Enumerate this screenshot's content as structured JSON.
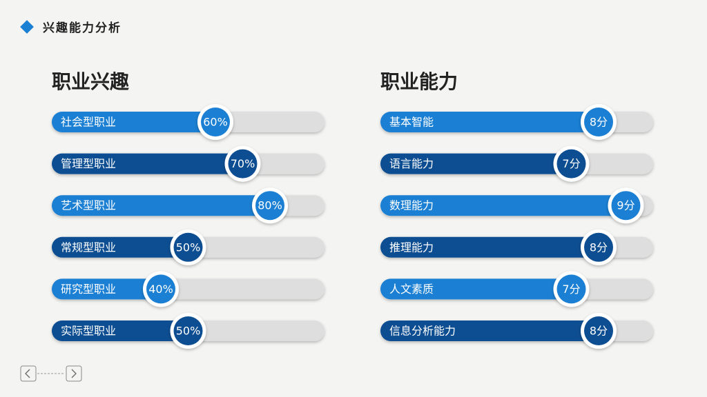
{
  "header": {
    "title": "兴趣能力分析"
  },
  "chart_data": [
    {
      "type": "bar",
      "title": "职业兴趣",
      "categories": [
        "社会型职业",
        "管理型职业",
        "艺术型职业",
        "常规型职业",
        "研究型职业",
        "实际型职业"
      ],
      "values": [
        60,
        70,
        80,
        50,
        40,
        50
      ],
      "value_labels": [
        "60%",
        "70%",
        "80%",
        "50%",
        "40%",
        "50%"
      ],
      "colors": [
        "#1b7fd3",
        "#0d4e92",
        "#1b7fd3",
        "#0d4e92",
        "#1b7fd3",
        "#0d4e92"
      ],
      "xlim": [
        0,
        100
      ]
    },
    {
      "type": "bar",
      "title": "职业能力",
      "categories": [
        "基本智能",
        "语言能力",
        "数理能力",
        "推理能力",
        "人文素质",
        "信息分析能力"
      ],
      "values": [
        8,
        7,
        9,
        8,
        7,
        8
      ],
      "value_labels": [
        "8分",
        "7分",
        "9分",
        "8分",
        "7分",
        "8分"
      ],
      "colors": [
        "#1b7fd3",
        "#0d4e92",
        "#1b7fd3",
        "#0d4e92",
        "#1b7fd3",
        "#0d4e92"
      ],
      "xlim": [
        0,
        10
      ]
    }
  ]
}
